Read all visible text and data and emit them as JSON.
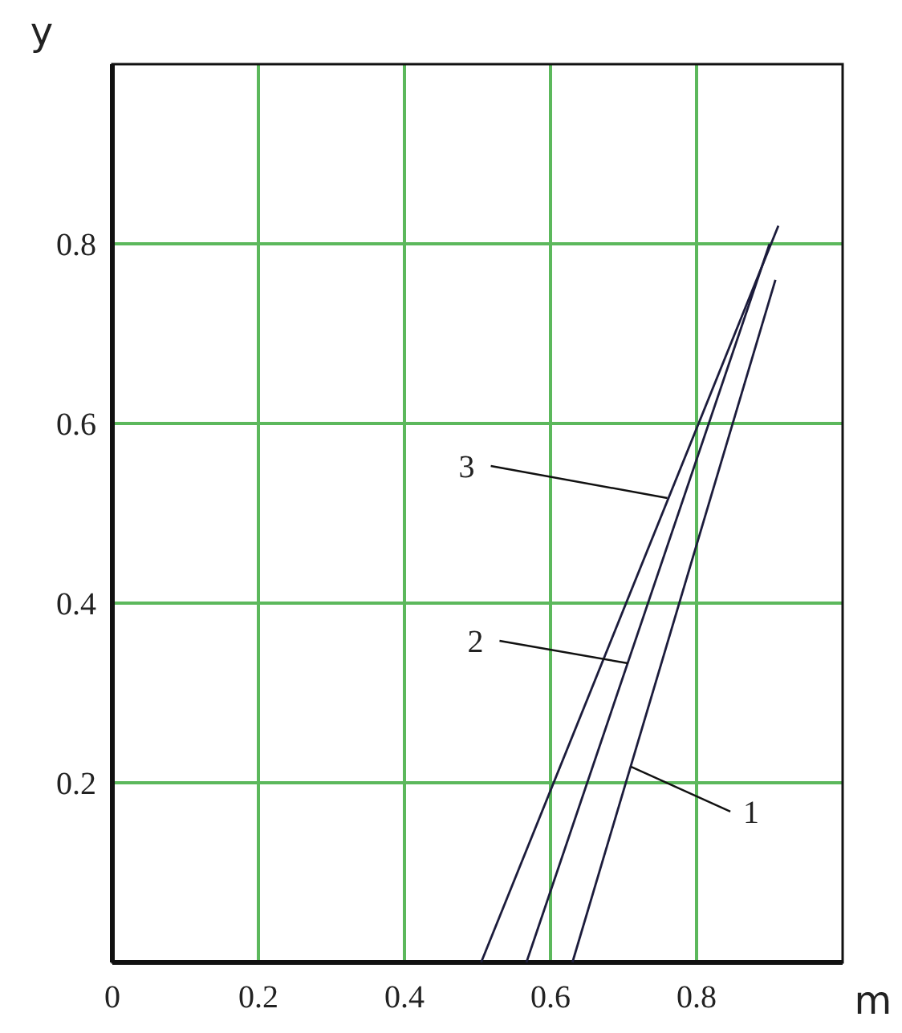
{
  "chart_data": {
    "type": "line",
    "xlabel": "m",
    "ylabel": "y",
    "xlim": [
      0,
      1
    ],
    "ylim": [
      0,
      1
    ],
    "xticks": [
      0,
      0.2,
      0.4,
      0.6,
      0.8
    ],
    "yticks": [
      0.2,
      0.4,
      0.6,
      0.8
    ],
    "grid": true,
    "series": [
      {
        "color": "#1c1c3c",
        "x": [
          0.63,
          0.908
        ],
        "values": [
          0,
          0.76
        ]
      },
      {
        "color": "#1c1c3c",
        "x": [
          0.567,
          0.9
        ],
        "values": [
          0,
          0.8
        ]
      },
      {
        "color": "#1c1c3c",
        "x": [
          0.505,
          0.912
        ],
        "values": [
          0,
          0.82
        ]
      }
    ],
    "annotations": [
      {
        "text": "1",
        "x": 0.71,
        "y": 0.218
      },
      {
        "text": "2",
        "x": 0.706,
        "y": 0.333
      },
      {
        "text": "3",
        "x": 0.76,
        "y": 0.517
      }
    ]
  }
}
